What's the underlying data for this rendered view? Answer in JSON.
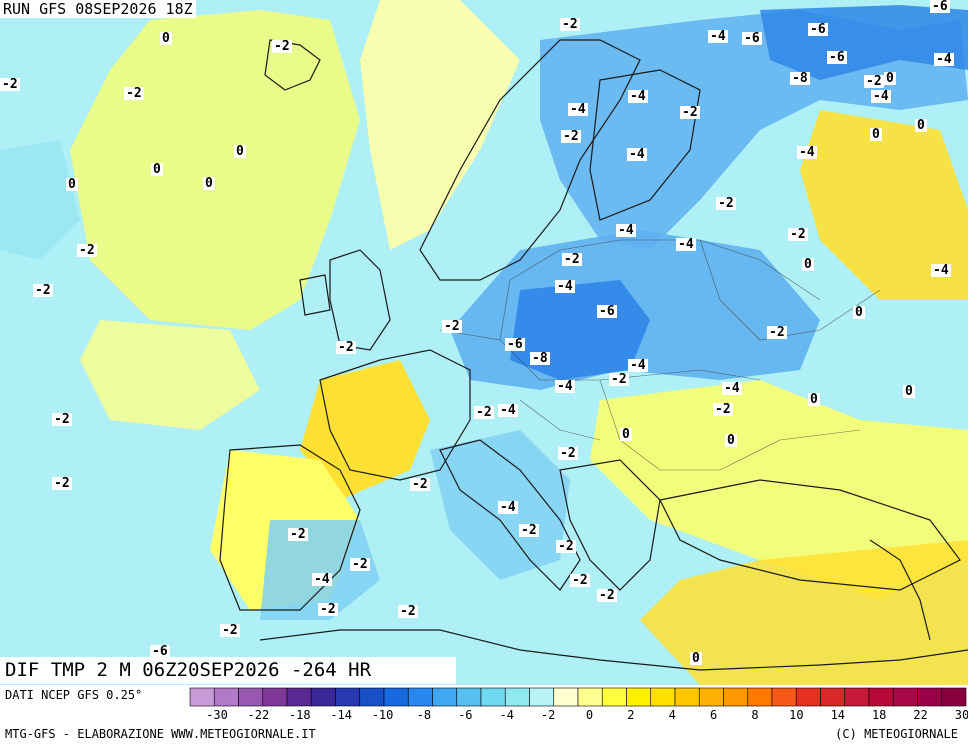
{
  "header": {
    "run_label": "RUN GFS 08SEP2026 18Z"
  },
  "map": {
    "colors": {
      "ocean": "#aef0f5",
      "deep_anomaly": "#5fb0f0",
      "strong_anomaly": "#2f86e8",
      "warm": "#ffff66",
      "warm_strong": "#ffe033",
      "neutral": "#ffffd8",
      "coast": "#1a1a1a"
    },
    "contour_labels": [
      "-2",
      "0",
      "-2",
      "-2",
      "0",
      "0",
      "0",
      "0",
      "-2",
      "-2",
      "-2",
      "-2",
      "-2",
      "-2",
      "-2",
      "-4",
      "-4",
      "-2",
      "-2",
      "-2",
      "-4",
      "-4",
      "-2",
      "-4",
      "-2",
      "-4",
      "-2",
      "-4",
      "-4",
      "-2",
      "-4",
      "-6",
      "-6",
      "-8",
      "-6",
      "-2",
      "-2",
      "-4",
      "-4",
      "-2",
      "-2",
      "-4",
      "-2",
      "-2",
      "-2",
      "-4",
      "-2",
      "-2",
      "-2",
      "-2",
      "-2",
      "0",
      "0",
      "0",
      "0",
      "0",
      "0",
      "0",
      "0",
      "-4",
      "-6",
      "-6",
      "-6",
      "-8",
      "-2",
      "0",
      "-4",
      "-4",
      "0",
      "-4",
      "-2",
      "-2",
      "-2",
      "0",
      "-6"
    ]
  },
  "validity": {
    "label": "DIF TMP 2 M 06Z20SEP2026 -264 HR"
  },
  "footer": {
    "source": "DATI NCEP GFS 0.25°",
    "credit": "MTG-GFS - ELABORAZIONE WWW.METEOGIORNALE.IT",
    "copyright": "(C) METEOGIORNALE"
  },
  "legend": {
    "ticks": [
      "-30",
      "-22",
      "-18",
      "-14",
      "-10",
      "-8",
      "-6",
      "-4",
      "-2",
      "0",
      "2",
      "4",
      "6",
      "8",
      "10",
      "14",
      "18",
      "22",
      "30"
    ],
    "colors": [
      "#c89ad8",
      "#b07ac8",
      "#9858b0",
      "#803898",
      "#5a2890",
      "#3a2898",
      "#2838b0",
      "#1850c8",
      "#1868e0",
      "#2888f0",
      "#40a8f0",
      "#58c0f0",
      "#70d8f0",
      "#90e8f0",
      "#b8f4f4",
      "#ffffd0",
      "#ffff90",
      "#ffff40",
      "#fff000",
      "#ffe000",
      "#ffc800",
      "#ffb000",
      "#ff9800",
      "#ff7800",
      "#f85818",
      "#e83020",
      "#d82828",
      "#c81838",
      "#b80838",
      "#a80848",
      "#980048",
      "#880040"
    ]
  }
}
